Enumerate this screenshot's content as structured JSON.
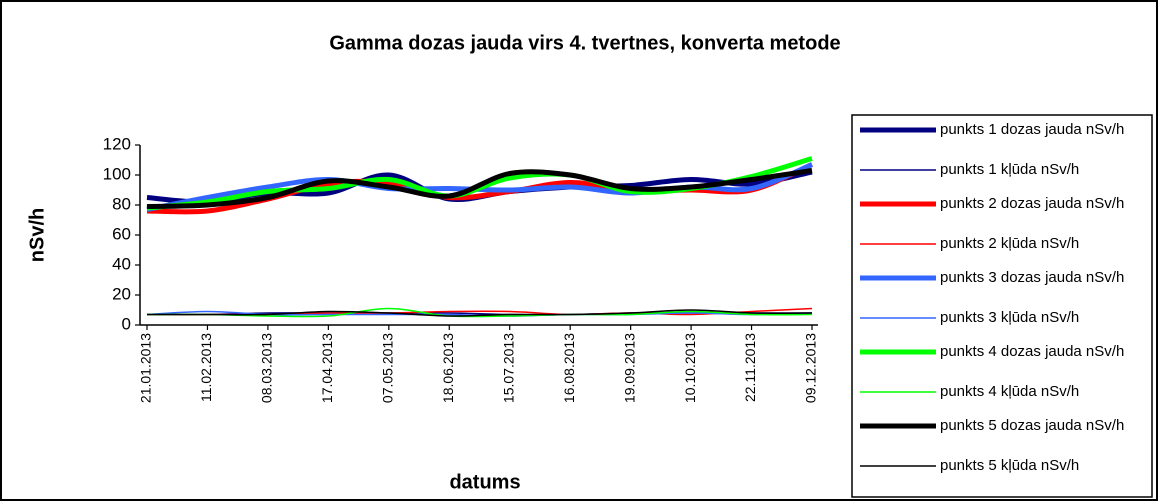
{
  "chart_data": {
    "type": "line",
    "title": "Gamma dozas jauda virs 4. tvertnes, konverta metode",
    "x_label": "datums",
    "y_label": "nSv/h",
    "categories": [
      "21.01.2013",
      "11.02.2013",
      "08.03.2013",
      "17.04.2013",
      "07.05.2013",
      "18.06.2013",
      "15.07.2013",
      "16.08.2013",
      "19.09.2013",
      "10.10.2013",
      "22.11.2013",
      "09.12.2013"
    ],
    "ylim": [
      0,
      120
    ],
    "yticks": [
      0,
      20,
      40,
      60,
      80,
      100,
      120
    ],
    "grid": false,
    "legend": "right",
    "series": [
      {
        "name": "punkts 1 dozas jauda nSv/h",
        "color": "#000080",
        "values": [
          85,
          82,
          88,
          88,
          100,
          84,
          89,
          92,
          93,
          97,
          94,
          102
        ]
      },
      {
        "name": "punkts 1 kļūda nSv/h",
        "color": "#000080",
        "values": [
          7,
          7,
          8,
          8,
          8,
          8,
          7,
          7,
          8,
          8,
          8,
          8
        ]
      },
      {
        "name": "punkts 2 dozas jauda nSv/h",
        "color": "#ff0000",
        "values": [
          76,
          76,
          84,
          94,
          95,
          85,
          89,
          95,
          90,
          90,
          90,
          107
        ]
      },
      {
        "name": "punkts 2 kļūda nSv/h",
        "color": "#ff0000",
        "values": [
          7,
          7,
          7,
          8,
          8,
          9,
          9,
          7,
          8,
          7,
          9,
          11
        ]
      },
      {
        "name": "punkts 3 dozas jauda nSv/h",
        "color": "#3366ff",
        "values": [
          77,
          85,
          92,
          97,
          91,
          91,
          90,
          92,
          88,
          92,
          91,
          107
        ]
      },
      {
        "name": "punkts 3 kļūda nSv/h",
        "color": "#3366ff",
        "values": [
          7,
          9,
          7,
          7,
          7,
          7,
          6,
          7,
          7,
          8,
          7,
          8
        ]
      },
      {
        "name": "punkts 4 dozas jauda nSv/h",
        "color": "#00ff00",
        "values": [
          78,
          82,
          89,
          91,
          97,
          86,
          98,
          100,
          89,
          91,
          99,
          111
        ]
      },
      {
        "name": "punkts 4 kļūda nSv/h",
        "color": "#00ff00",
        "values": [
          7,
          7,
          6,
          6,
          11,
          6,
          6,
          7,
          7,
          9,
          7,
          7
        ]
      },
      {
        "name": "punkts 5 dozas jauda nSv/h",
        "color": "#000000",
        "values": [
          79,
          80,
          85,
          96,
          92,
          86,
          101,
          100,
          91,
          92,
          97,
          103
        ]
      },
      {
        "name": "punkts 5 kļūda nSv/h",
        "color": "#000000",
        "values": [
          7,
          7,
          7,
          9,
          8,
          6,
          7,
          7,
          8,
          10,
          8,
          8
        ]
      }
    ]
  }
}
